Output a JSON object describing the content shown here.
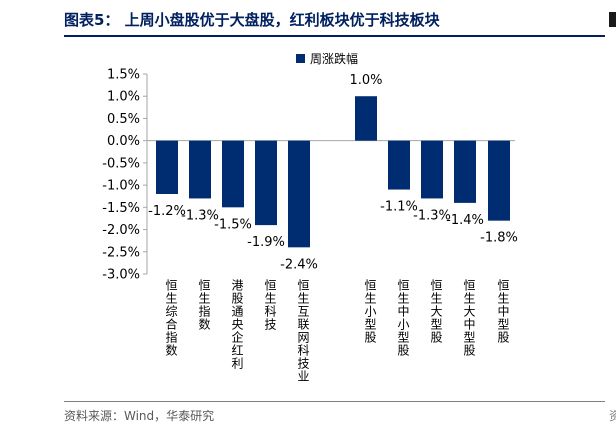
{
  "header": {
    "title": "图表5： 上周小盘股优于大盘股，红利板块优于科技板块",
    "edge_text": "资"
  },
  "footer": {
    "source": "资料来源：Wind，华泰研究"
  },
  "chart_data": {
    "type": "bar",
    "title": "图表5： 上周小盘股优于大盘股，红利板块优于科技板块",
    "xlabel": "",
    "ylabel": "",
    "categories": [
      "恒生综合指数",
      "恒生指数",
      "港股通央企红利",
      "恒生科技",
      "恒生互联网科技业",
      "恒生小型股",
      "恒生中小型股",
      "恒生大型股",
      "恒生大中型股",
      "恒生中型股"
    ],
    "series": [
      {
        "name": "周涨跌幅",
        "values": [
          -1.2,
          -1.3,
          -1.5,
          -1.9,
          -2.4,
          1.0,
          -1.1,
          -1.3,
          -1.4,
          -1.8
        ],
        "labels": [
          "-1.2%",
          "-1.3%",
          "-1.5%",
          "-1.9%",
          "-2.4%",
          "1.0%",
          "-1.1%",
          "-1.3%",
          "-1.4%",
          "-1.8%"
        ]
      }
    ],
    "ylim": [
      -3.0,
      1.5
    ],
    "yticks": [
      1.5,
      1.0,
      0.5,
      0.0,
      -0.5,
      -1.0,
      -1.5,
      -2.0,
      -2.5,
      -3.0
    ],
    "ytick_labels": [
      "1.5%",
      "1.0%",
      "0.5%",
      "0.0%",
      "-0.5%",
      "-1.0%",
      "-1.5%",
      "-2.0%",
      "-2.5%",
      "-3.0%"
    ],
    "grid": false,
    "legend_position": "top-center",
    "colors": {
      "bar": "#002d72",
      "axis": "#a6a6a6"
    }
  }
}
